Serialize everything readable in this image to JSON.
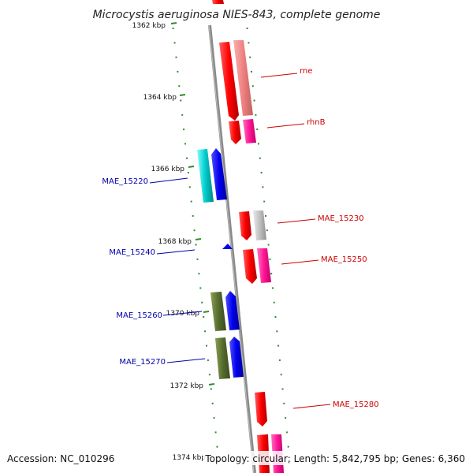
{
  "title": "Microcystis aeruginosa NIES-843, complete genome",
  "footer": {
    "accession": "Accession: NC_010296",
    "summary": "Topology: circular; Length: 5,842,795 bp; Genes: 6,360"
  },
  "ruler": {
    "color": "#2e8b2e",
    "ticks": [
      {
        "label": "1362 kbp"
      },
      {
        "label": "1364 kbp"
      },
      {
        "label": "1366 kbp"
      },
      {
        "label": "1368 kbp"
      },
      {
        "label": "1370 kbp"
      },
      {
        "label": "1372 kbp"
      },
      {
        "label": "1374 kbp"
      }
    ]
  },
  "gene_labels": {
    "rne": "rne",
    "rhnB": "rhnB",
    "MAE_15220": "MAE_15220",
    "MAE_15230": "MAE_15230",
    "MAE_15240": "MAE_15240",
    "MAE_15250": "MAE_15250",
    "MAE_15260": "MAE_15260",
    "MAE_15270": "MAE_15270",
    "MAE_15280": "MAE_15280"
  },
  "colors": {
    "forward_label": "#cc0000",
    "reverse_label": "#0000aa",
    "backbone": "#888888",
    "gene_red": "#ff0000",
    "gene_pink_light": "#f08080",
    "gene_magenta": "#ff1493",
    "gene_cyan": "#00cccc",
    "gene_blue": "#0000ee",
    "gene_olive": "#556b2f",
    "gene_gray": "#c0c0c0"
  }
}
